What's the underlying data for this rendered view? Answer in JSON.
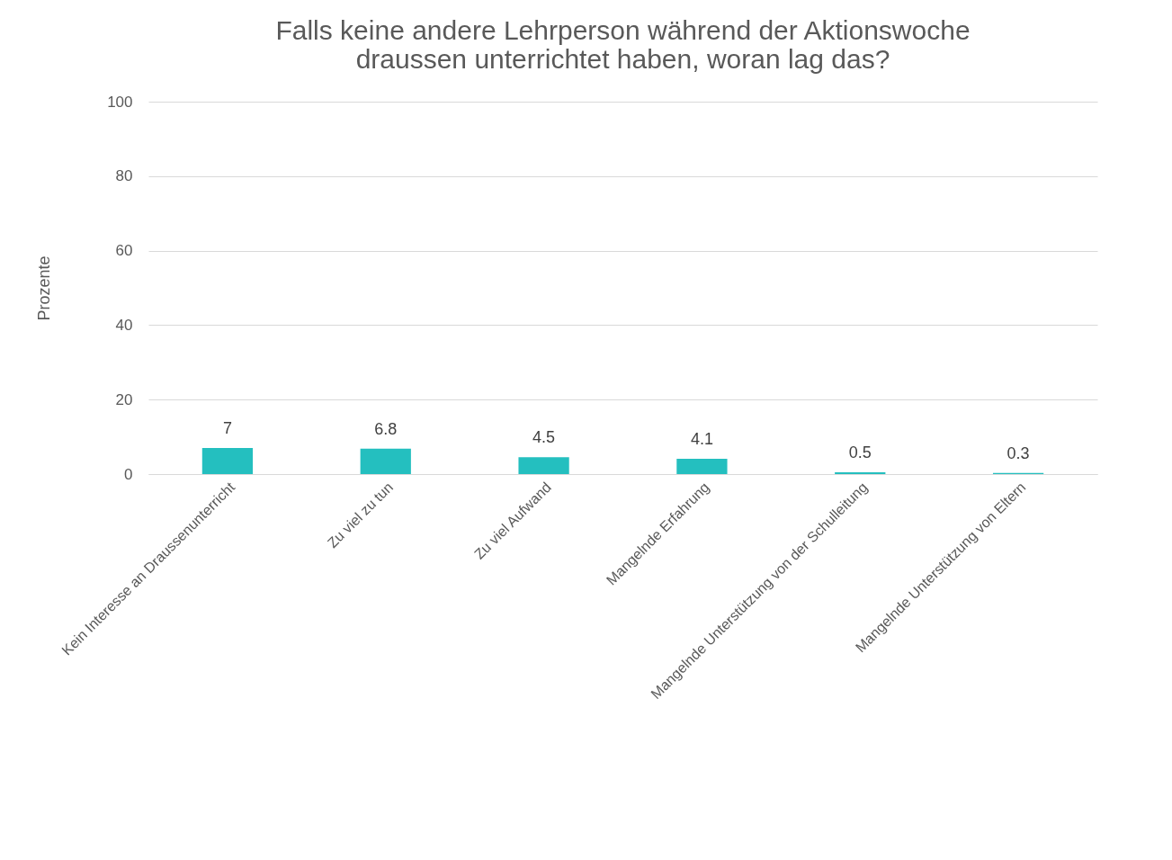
{
  "chart_data": {
    "type": "bar",
    "title": "Falls keine andere Lehrperson während der Aktionswoche\ndraussen unterrichtet haben, woran lag das?",
    "ylabel": "Prozente",
    "categories": [
      "Kein Interesse an Draussenunterricht",
      "Zu viel zu tun",
      "Zu viel Aufwand",
      "Mangelnde Erfahrung",
      "Mangelnde Unterstützung von der Schulleitung",
      "Mangelnde Unterstützung von Eltern"
    ],
    "values": [
      7,
      6.8,
      4.5,
      4.1,
      0.5,
      0.3
    ],
    "color": "#24bfbf",
    "ylim": [
      0,
      100
    ],
    "yticks": [
      0,
      20,
      40,
      60,
      80,
      100
    ],
    "grid": "y",
    "data_labels": true
  }
}
